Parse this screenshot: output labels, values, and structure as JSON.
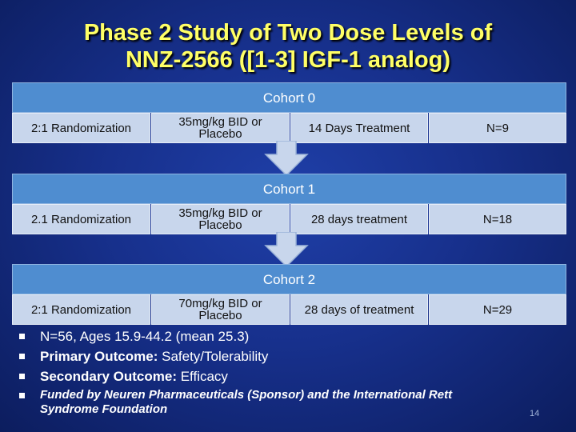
{
  "title": {
    "line1": "Phase 2 Study of Two Dose Levels of",
    "line2": "NNZ-2566 ([1-3] IGF-1 analog)"
  },
  "cohorts": [
    {
      "header": "Cohort 0",
      "randomization": "2:1 Randomization",
      "dose_line1": "35mg/kg BID or",
      "dose_line2": "Placebo",
      "treatment": "14 Days Treatment",
      "n": "N=9"
    },
    {
      "header": "Cohort 1",
      "randomization": "2.1 Randomization",
      "dose_line1": "35mg/kg BID or",
      "dose_line2": "Placebo",
      "treatment": "28 days treatment",
      "n": "N=18"
    },
    {
      "header": "Cohort 2",
      "randomization": "2:1 Randomization",
      "dose_line1": "70mg/kg BID or",
      "dose_line2": "Placebo",
      "treatment": "28 days of treatment",
      "n": "N=29"
    }
  ],
  "bullets": {
    "b1": "N=56, Ages 15.9-44.2 (mean 25.3)",
    "b2_label": "Primary Outcome:",
    "b2_value": " Safety/Tolerability",
    "b3_label": "Secondary Outcome:",
    "b3_value": " Efficacy",
    "b4_line1": "Funded by Neuren Pharmaceuticals (Sponsor) and the International Rett",
    "b4_line2": "Syndrome Foundation"
  },
  "page_number": "14",
  "colors": {
    "background": "#17308c",
    "title": "#ffff66",
    "header_fill": "#4f8dd0",
    "cell_fill": "#c8d6ec"
  }
}
